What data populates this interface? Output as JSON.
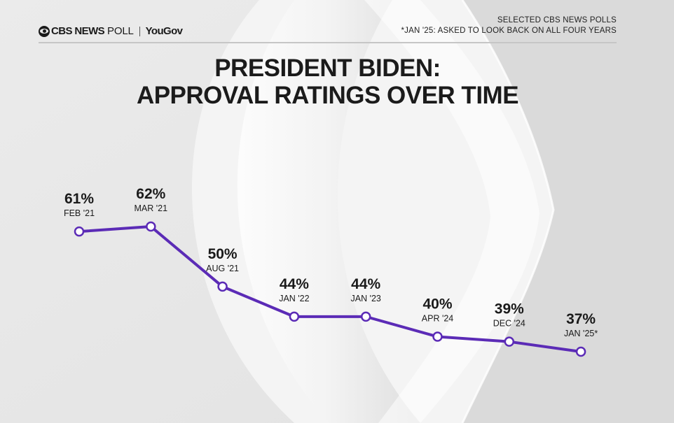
{
  "header": {
    "brand_bold": "CBS NEWS",
    "brand_light": "POLL",
    "partner": "YouGov",
    "note_line1": "SELECTED CBS NEWS POLLS",
    "note_line2": "*JAN '25: ASKED TO LOOK BACK ON ALL FOUR YEARS"
  },
  "colors": {
    "line": "#5b2bb6",
    "text": "#1a1a1a"
  },
  "chart_data": {
    "type": "line",
    "title_line1": "PRESIDENT BIDEN:",
    "title_line2": "APPROVAL RATINGS OVER TIME",
    "categories": [
      "FEB '21",
      "MAR '21",
      "AUG '21",
      "JAN '22",
      "JAN '23",
      "APR '24",
      "DEC '24",
      "JAN '25*"
    ],
    "series": [
      {
        "name": "Approval",
        "values": [
          61,
          62,
          50,
          44,
          44,
          40,
          39,
          37
        ],
        "labels": [
          "61%",
          "62%",
          "50%",
          "44%",
          "44%",
          "40%",
          "39%",
          "37%"
        ]
      }
    ],
    "xlabel": "",
    "ylabel": "",
    "ylim": [
      37,
      62
    ],
    "grid": false,
    "legend": "none"
  }
}
